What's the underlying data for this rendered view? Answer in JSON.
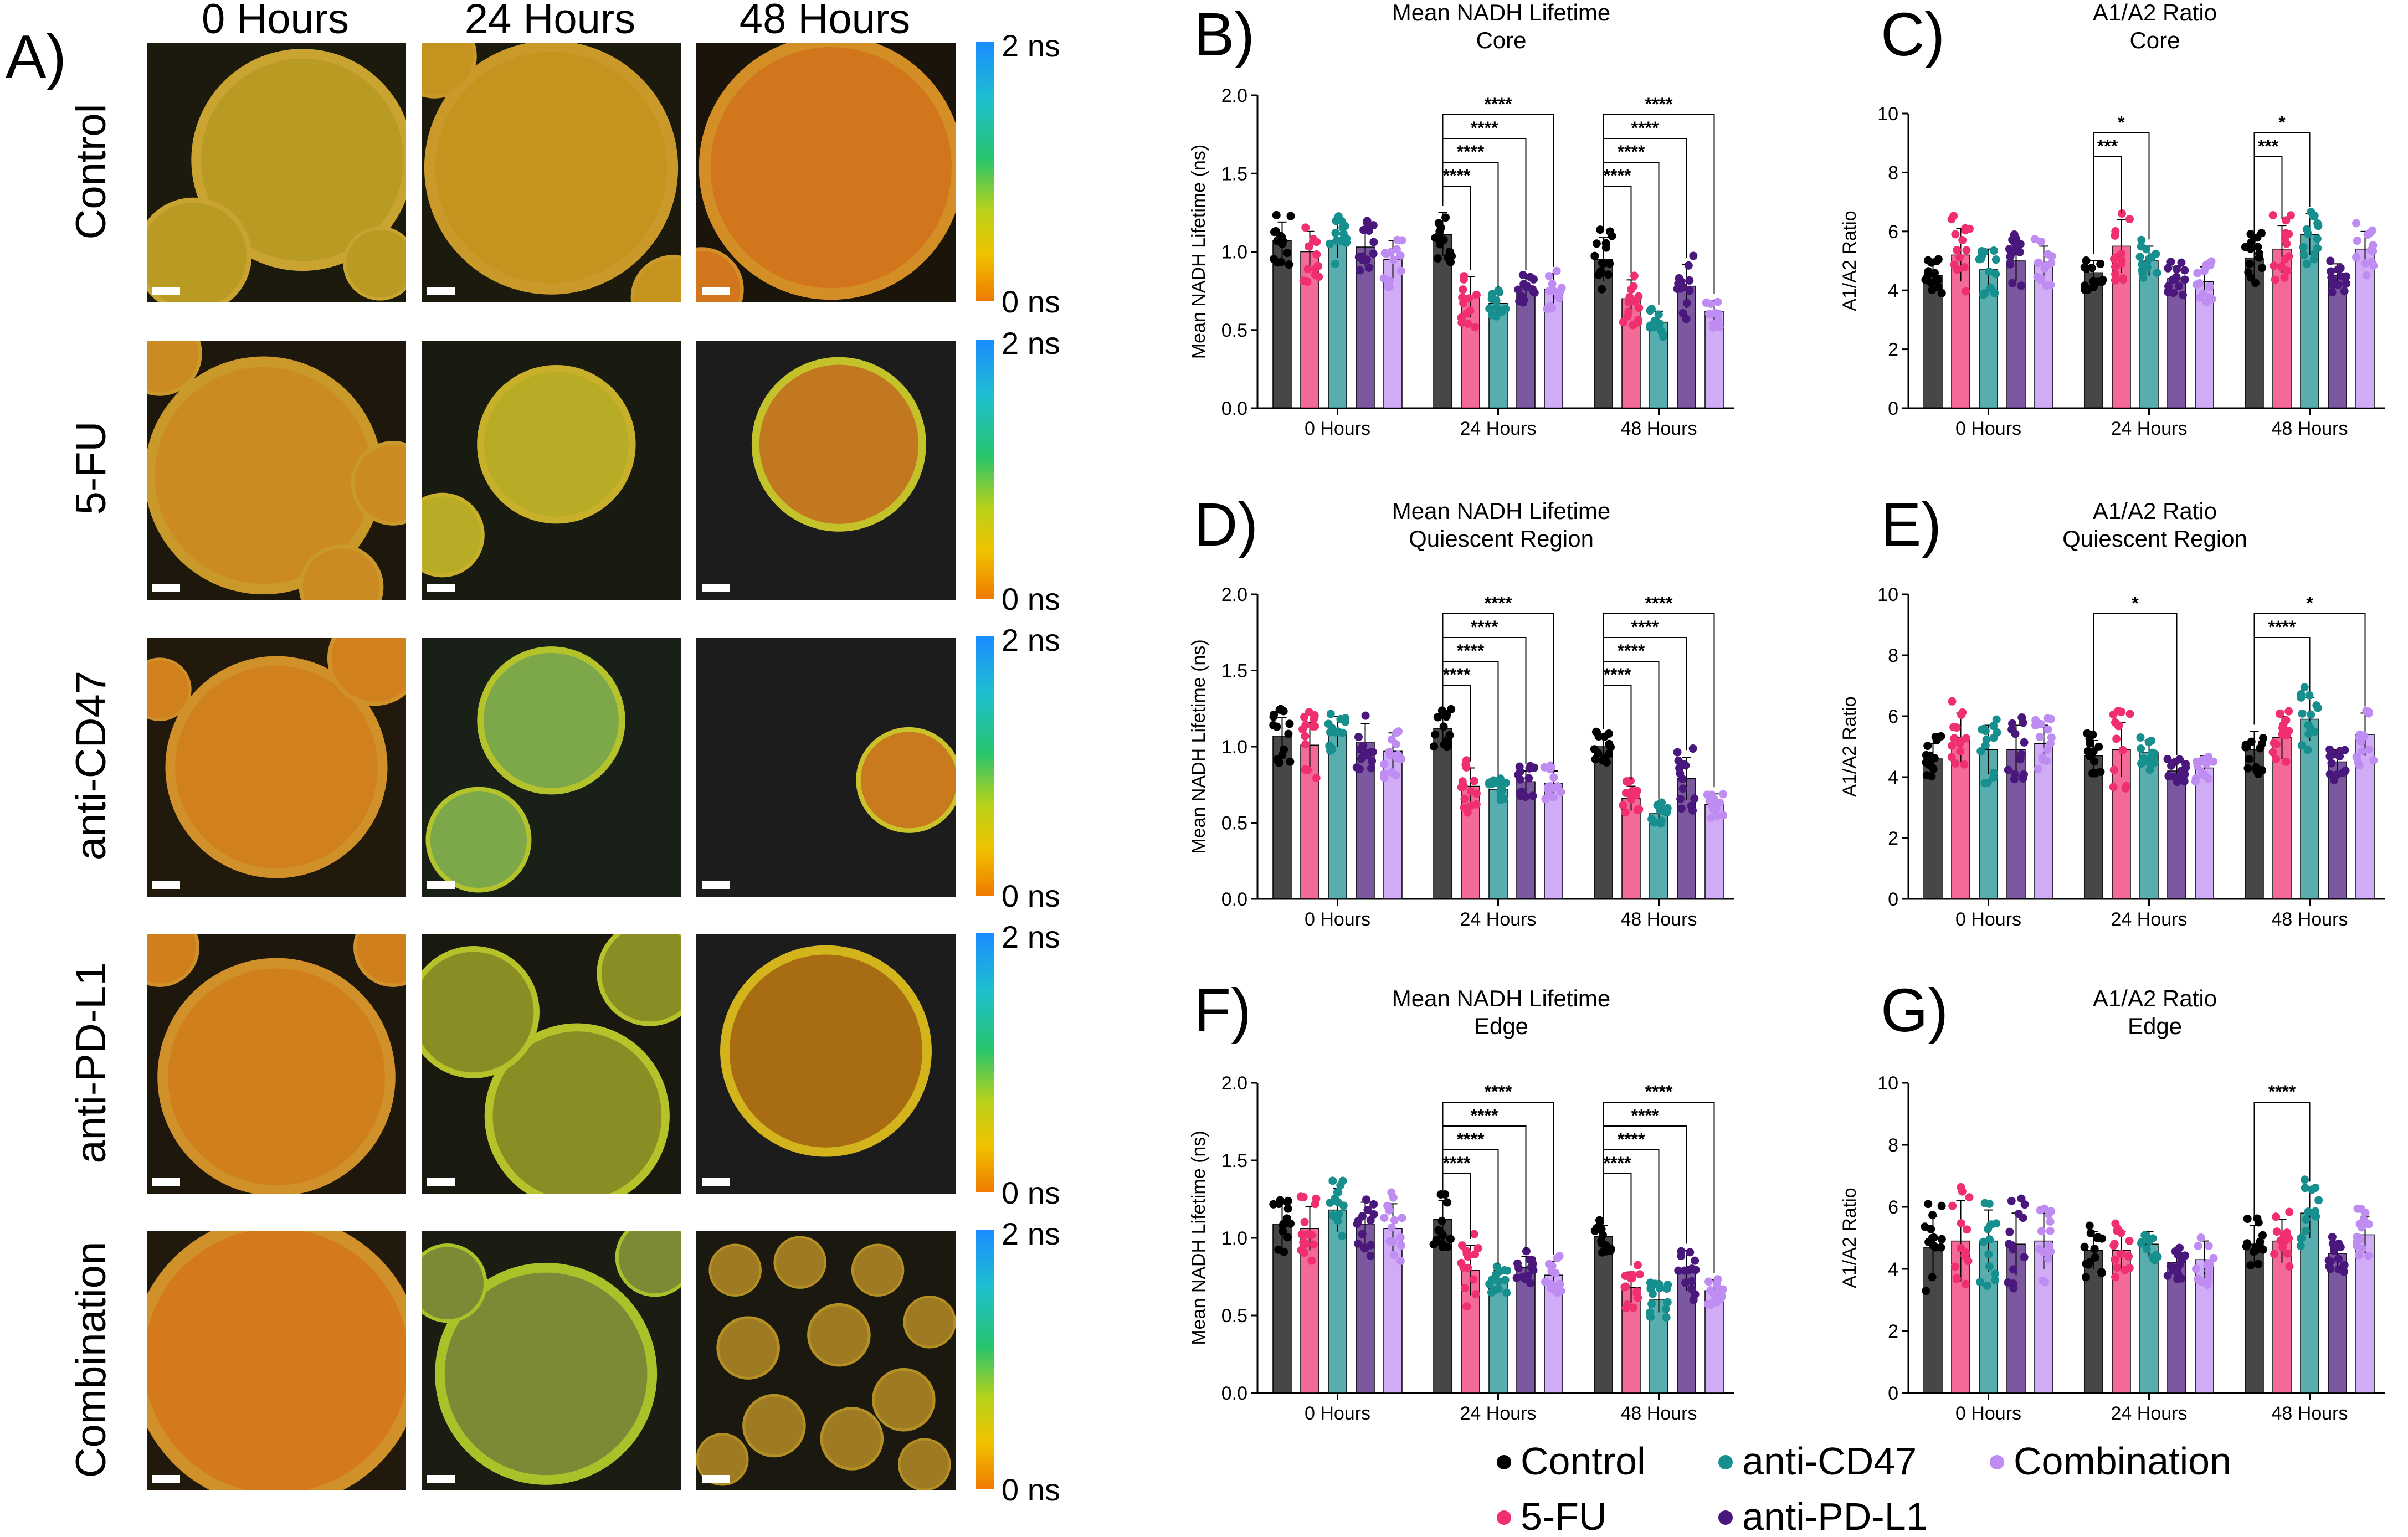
{
  "panel_a": {
    "label": "A)",
    "columns": [
      "0 Hours",
      "24 Hours",
      "48 Hours"
    ],
    "rows": [
      "Control",
      "5-FU",
      "anti-CD47",
      "anti-PD-L1",
      "Combination"
    ],
    "colorbar": {
      "max_label": "2 ns",
      "min_label": "0 ns",
      "colors": [
        "#1a8cff",
        "#1fbfd0",
        "#27c46c",
        "#b9d21a",
        "#f0c200",
        "#ef7a00"
      ]
    },
    "tiles": [
      [
        {
          "bg": "#1b1a0c",
          "spheroid": "#b99a22",
          "rim": "#c9a431"
        },
        {
          "bg": "#1b1a0c",
          "spheroid": "#c4941e",
          "rim": "#c99a2a"
        },
        {
          "bg": "#1a140a",
          "spheroid": "#d2761d",
          "rim": "#d48e26"
        }
      ],
      [
        {
          "bg": "#1e180c",
          "spheroid": "#cc8a22",
          "rim": "#c99a2a"
        },
        {
          "bg": "#191a10",
          "spheroid": "#b8ac26",
          "rim": "#c8b02a"
        },
        {
          "bg": "#1c1c1c",
          "spheroid": "#c2781e",
          "rim": "#c4c22a"
        }
      ],
      [
        {
          "bg": "#20190c",
          "spheroid": "#d0801c",
          "rim": "#d0902a"
        },
        {
          "bg": "#192018",
          "spheroid": "#7ca84a",
          "rim": "#b4c22c"
        },
        {
          "bg": "#1c1c1c",
          "spheroid": "#c97a1c",
          "rim": "#c9c22a"
        }
      ],
      [
        {
          "bg": "#1e180c",
          "spheroid": "#cf7f1c",
          "rim": "#d0902a"
        },
        {
          "bg": "#19190f",
          "spheroid": "#8a8c24",
          "rim": "#b6c22a"
        },
        {
          "bg": "#1c1c1c",
          "spheroid": "#a86d12",
          "rim": "#d4b41c"
        }
      ],
      [
        {
          "bg": "#20190c",
          "spheroid": "#d47a1c",
          "rim": "#d0902a"
        },
        {
          "bg": "#1a1d12",
          "spheroid": "#7c8a36",
          "rim": "#a8c22a"
        },
        {
          "bg": "#1b1810",
          "spheroid": "#9e7a22",
          "rim": "#b49024"
        }
      ]
    ]
  },
  "legend": {
    "items": [
      {
        "label": "Control",
        "color": "#000000"
      },
      {
        "label": "anti-CD47",
        "color": "#178f8f"
      },
      {
        "label": "Combination",
        "color": "#bf8cf2"
      },
      {
        "label": "5-FU",
        "color": "#f0306e"
      },
      {
        "label": "anti-PD-L1",
        "color": "#4a177d"
      }
    ]
  },
  "chart_data": [
    {
      "panel": "B)",
      "type": "bar",
      "title": [
        "Mean NADH Lifetime",
        "Core"
      ],
      "ylabel": "Mean NADH Lifetime (ns)",
      "ylim": [
        0,
        2.0
      ],
      "yticks": [
        "0.0",
        "0.5",
        "1.0",
        "1.5",
        "2.0"
      ],
      "categories": [
        "0 Hours",
        "24 Hours",
        "48 Hours"
      ],
      "series": [
        {
          "name": "Control",
          "values": [
            1.07,
            1.11,
            0.95
          ],
          "errors": [
            0.12,
            0.14,
            0.14
          ]
        },
        {
          "name": "5-FU",
          "values": [
            1.0,
            0.71,
            0.7
          ],
          "errors": [
            0.13,
            0.13,
            0.12
          ]
        },
        {
          "name": "anti-CD47",
          "values": [
            1.07,
            0.67,
            0.55
          ],
          "errors": [
            0.11,
            0.06,
            0.07
          ]
        },
        {
          "name": "anti-PD-L1",
          "values": [
            1.03,
            0.77,
            0.78
          ],
          "errors": [
            0.12,
            0.07,
            0.14
          ]
        },
        {
          "name": "Combination",
          "values": [
            0.95,
            0.76,
            0.62
          ],
          "errors": [
            0.12,
            0.1,
            0.07
          ]
        }
      ],
      "significance": [
        {
          "group": 1,
          "from": 0,
          "to": 1,
          "label": "****"
        },
        {
          "group": 1,
          "from": 0,
          "to": 2,
          "label": "****"
        },
        {
          "group": 1,
          "from": 0,
          "to": 3,
          "label": "****"
        },
        {
          "group": 1,
          "from": 0,
          "to": 4,
          "label": "****"
        },
        {
          "group": 2,
          "from": 0,
          "to": 1,
          "label": "****"
        },
        {
          "group": 2,
          "from": 0,
          "to": 2,
          "label": "****"
        },
        {
          "group": 2,
          "from": 0,
          "to": 3,
          "label": "****"
        },
        {
          "group": 2,
          "from": 0,
          "to": 4,
          "label": "****"
        }
      ]
    },
    {
      "panel": "C)",
      "type": "bar",
      "title": [
        "A1/A2 Ratio",
        "Core"
      ],
      "ylabel": "A1/A2 Ratio",
      "ylim": [
        0,
        10
      ],
      "yticks": [
        "0",
        "2",
        "4",
        "6",
        "8",
        "10"
      ],
      "categories": [
        "0 Hours",
        "24 Hours",
        "48 Hours"
      ],
      "series": [
        {
          "name": "Control",
          "values": [
            4.5,
            4.6,
            5.1
          ],
          "errors": [
            0.4,
            0.4,
            0.6
          ]
        },
        {
          "name": "5-FU",
          "values": [
            5.2,
            5.5,
            5.4
          ],
          "errors": [
            0.9,
            0.9,
            0.8
          ]
        },
        {
          "name": "anti-CD47",
          "values": [
            4.7,
            5.0,
            5.9
          ],
          "errors": [
            0.7,
            0.5,
            0.7
          ]
        },
        {
          "name": "anti-PD-L1",
          "values": [
            5.0,
            4.4,
            4.5
          ],
          "errors": [
            0.7,
            0.4,
            0.4
          ]
        },
        {
          "name": "Combination",
          "values": [
            4.9,
            4.3,
            5.4
          ],
          "errors": [
            0.6,
            0.5,
            0.6
          ]
        }
      ],
      "significance": [
        {
          "group": 1,
          "from": 0,
          "to": 1,
          "label": "***"
        },
        {
          "group": 1,
          "from": 0,
          "to": 2,
          "label": "*"
        },
        {
          "group": 2,
          "from": 0,
          "to": 1,
          "label": "***"
        },
        {
          "group": 2,
          "from": 0,
          "to": 2,
          "label": "*"
        }
      ]
    },
    {
      "panel": "D)",
      "type": "bar",
      "title": [
        "Mean NADH Lifetime",
        "Quiescent Region"
      ],
      "ylabel": "Mean NADH Lifetime (ns)",
      "ylim": [
        0,
        2.0
      ],
      "yticks": [
        "0.0",
        "0.5",
        "1.0",
        "1.5",
        "2.0"
      ],
      "categories": [
        "0 Hours",
        "24 Hours",
        "48 Hours"
      ],
      "series": [
        {
          "name": "Control",
          "values": [
            1.07,
            1.12,
            1.0
          ],
          "errors": [
            0.12,
            0.1,
            0.07
          ]
        },
        {
          "name": "5-FU",
          "values": [
            1.01,
            0.74,
            0.66
          ],
          "errors": [
            0.15,
            0.12,
            0.08
          ]
        },
        {
          "name": "anti-CD47",
          "values": [
            1.1,
            0.72,
            0.56
          ],
          "errors": [
            0.1,
            0.05,
            0.05
          ]
        },
        {
          "name": "anti-PD-L1",
          "values": [
            1.03,
            0.77,
            0.79
          ],
          "errors": [
            0.12,
            0.07,
            0.14
          ]
        },
        {
          "name": "Combination",
          "values": [
            0.97,
            0.76,
            0.62
          ],
          "errors": [
            0.12,
            0.08,
            0.07
          ]
        }
      ],
      "significance": [
        {
          "group": 1,
          "from": 0,
          "to": 1,
          "label": "****"
        },
        {
          "group": 1,
          "from": 0,
          "to": 2,
          "label": "****"
        },
        {
          "group": 1,
          "from": 0,
          "to": 3,
          "label": "****"
        },
        {
          "group": 1,
          "from": 0,
          "to": 4,
          "label": "****"
        },
        {
          "group": 2,
          "from": 0,
          "to": 1,
          "label": "****"
        },
        {
          "group": 2,
          "from": 0,
          "to": 2,
          "label": "****"
        },
        {
          "group": 2,
          "from": 0,
          "to": 3,
          "label": "****"
        },
        {
          "group": 2,
          "from": 0,
          "to": 4,
          "label": "****"
        }
      ]
    },
    {
      "panel": "E)",
      "type": "bar",
      "title": [
        "A1/A2 Ratio",
        "Quiescent Region"
      ],
      "ylabel": "A1/A2 Ratio",
      "ylim": [
        0,
        10
      ],
      "yticks": [
        "0",
        "2",
        "4",
        "6",
        "8",
        "10"
      ],
      "categories": [
        "0 Hours",
        "24 Hours",
        "48 Hours"
      ],
      "series": [
        {
          "name": "Control",
          "values": [
            4.6,
            4.7,
            4.9
          ],
          "errors": [
            0.5,
            0.5,
            0.6
          ]
        },
        {
          "name": "5-FU",
          "values": [
            5.3,
            4.9,
            5.3
          ],
          "errors": [
            0.8,
            0.9,
            0.7
          ]
        },
        {
          "name": "anti-CD47",
          "values": [
            4.9,
            4.8,
            5.9
          ],
          "errors": [
            0.8,
            0.4,
            0.7
          ]
        },
        {
          "name": "anti-PD-L1",
          "values": [
            4.9,
            4.2,
            4.5
          ],
          "errors": [
            0.8,
            0.3,
            0.4
          ]
        },
        {
          "name": "Combination",
          "values": [
            5.1,
            4.3,
            5.4
          ],
          "errors": [
            0.6,
            0.4,
            0.7
          ]
        }
      ],
      "significance": [
        {
          "group": 1,
          "from": 0,
          "to": 3,
          "label": "*"
        },
        {
          "group": 2,
          "from": 0,
          "to": 2,
          "label": "****"
        },
        {
          "group": 2,
          "from": 0,
          "to": 4,
          "label": "*"
        }
      ]
    },
    {
      "panel": "F)",
      "type": "bar",
      "title": [
        "Mean NADH Lifetime",
        "Edge"
      ],
      "ylabel": "Mean NADH Lifetime (ns)",
      "ylim": [
        0,
        2.0
      ],
      "yticks": [
        "0.0",
        "0.5",
        "1.0",
        "1.5",
        "2.0"
      ],
      "categories": [
        "0 Hours",
        "24 Hours",
        "48 Hours"
      ],
      "series": [
        {
          "name": "Control",
          "values": [
            1.09,
            1.12,
            1.01
          ],
          "errors": [
            0.16,
            0.12,
            0.07
          ]
        },
        {
          "name": "5-FU",
          "values": [
            1.06,
            0.79,
            0.68
          ],
          "errors": [
            0.14,
            0.16,
            0.1
          ]
        },
        {
          "name": "anti-CD47",
          "values": [
            1.18,
            0.73,
            0.6
          ],
          "errors": [
            0.14,
            0.06,
            0.08
          ]
        },
        {
          "name": "anti-PD-L1",
          "values": [
            1.09,
            0.81,
            0.79
          ],
          "errors": [
            0.14,
            0.07,
            0.13
          ]
        },
        {
          "name": "Combination",
          "values": [
            1.06,
            0.76,
            0.66
          ],
          "errors": [
            0.16,
            0.09,
            0.07
          ]
        }
      ],
      "significance": [
        {
          "group": 1,
          "from": 0,
          "to": 1,
          "label": "****"
        },
        {
          "group": 1,
          "from": 0,
          "to": 2,
          "label": "****"
        },
        {
          "group": 1,
          "from": 0,
          "to": 3,
          "label": "****"
        },
        {
          "group": 1,
          "from": 0,
          "to": 4,
          "label": "****"
        },
        {
          "group": 2,
          "from": 0,
          "to": 1,
          "label": "****"
        },
        {
          "group": 2,
          "from": 0,
          "to": 2,
          "label": "****"
        },
        {
          "group": 2,
          "from": 0,
          "to": 3,
          "label": "****"
        },
        {
          "group": 2,
          "from": 0,
          "to": 4,
          "label": "****"
        }
      ]
    },
    {
      "panel": "G)",
      "type": "bar",
      "title": [
        "A1/A2 Ratio",
        "Edge"
      ],
      "ylabel": "A1/A2 Ratio",
      "ylim": [
        0,
        10
      ],
      "yticks": [
        "0",
        "2",
        "4",
        "6",
        "8",
        "10"
      ],
      "categories": [
        "0 Hours",
        "24 Hours",
        "48 Hours"
      ],
      "series": [
        {
          "name": "Control",
          "values": [
            4.7,
            4.6,
            4.8
          ],
          "errors": [
            1.0,
            0.6,
            0.6
          ]
        },
        {
          "name": "5-FU",
          "values": [
            4.9,
            4.6,
            4.9
          ],
          "errors": [
            1.3,
            0.6,
            0.7
          ]
        },
        {
          "name": "anti-CD47",
          "values": [
            4.9,
            4.8,
            5.8
          ],
          "errors": [
            1.0,
            0.4,
            0.8
          ]
        },
        {
          "name": "anti-PD-L1",
          "values": [
            4.8,
            4.2,
            4.5
          ],
          "errors": [
            1.0,
            0.4,
            0.4
          ]
        },
        {
          "name": "Combination",
          "values": [
            4.9,
            4.3,
            5.1
          ],
          "errors": [
            0.9,
            0.6,
            0.6
          ]
        }
      ],
      "significance": [
        {
          "group": 2,
          "from": 0,
          "to": 2,
          "label": "****"
        }
      ]
    }
  ]
}
